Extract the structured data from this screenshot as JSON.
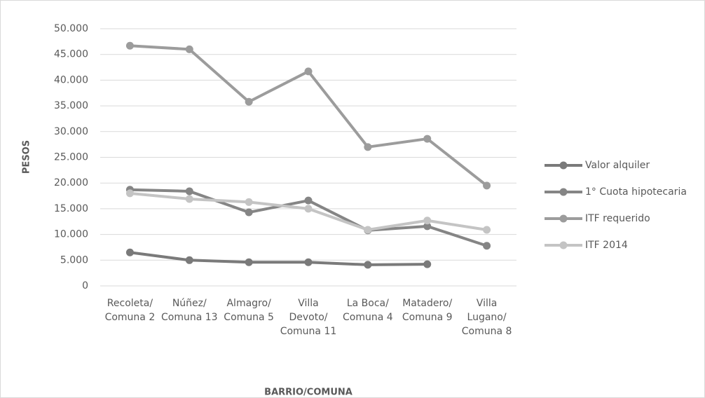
{
  "chart_data": {
    "type": "line",
    "xlabel": "BARRIO/COMUNA",
    "ylabel": "PESOS",
    "categories": [
      "Recoleta/ Comuna 2",
      "Núñez/ Comuna 13",
      "Almagro/ Comuna 5",
      "Villa Devoto/ Comuna 11",
      "La Boca/ Comuna 4",
      "Matadero/ Comuna 9",
      "Villa Lugano/ Comuna 8"
    ],
    "series": [
      {
        "name": "Valor alquiler",
        "color": "#7a7a7a",
        "values": [
          6500,
          5000,
          4600,
          4600,
          4100,
          4200,
          null
        ]
      },
      {
        "name": "1° Cuota hipotecaria",
        "color": "#858585",
        "values": [
          18700,
          18400,
          14300,
          16600,
          10800,
          11600,
          7800
        ]
      },
      {
        "name": "ITF requerido",
        "color": "#9c9c9c",
        "values": [
          46700,
          46000,
          35800,
          41700,
          27000,
          28600,
          19500
        ]
      },
      {
        "name": "ITF 2014",
        "color": "#c4c4c4",
        "values": [
          18000,
          16900,
          16300,
          15000,
          10900,
          12700,
          10900
        ]
      }
    ],
    "ylim": [
      0,
      50000
    ],
    "yticks": [
      0,
      {
        "value": 5000,
        "label": "5.000"
      },
      {
        "value": 10000,
        "label": "10.000"
      },
      {
        "value": 15000,
        "label": "15.000"
      },
      {
        "value": 20000,
        "label": "20.000"
      },
      {
        "value": 25000,
        "label": "25.000"
      },
      {
        "value": 30000,
        "label": "30.000"
      },
      {
        "value": 35000,
        "label": "35.000"
      },
      {
        "value": 40000,
        "label": "40.000"
      },
      {
        "value": 45000,
        "label": "45.000"
      },
      {
        "value": 50000,
        "label": "50.000"
      }
    ],
    "grid": true,
    "legend": "right"
  }
}
